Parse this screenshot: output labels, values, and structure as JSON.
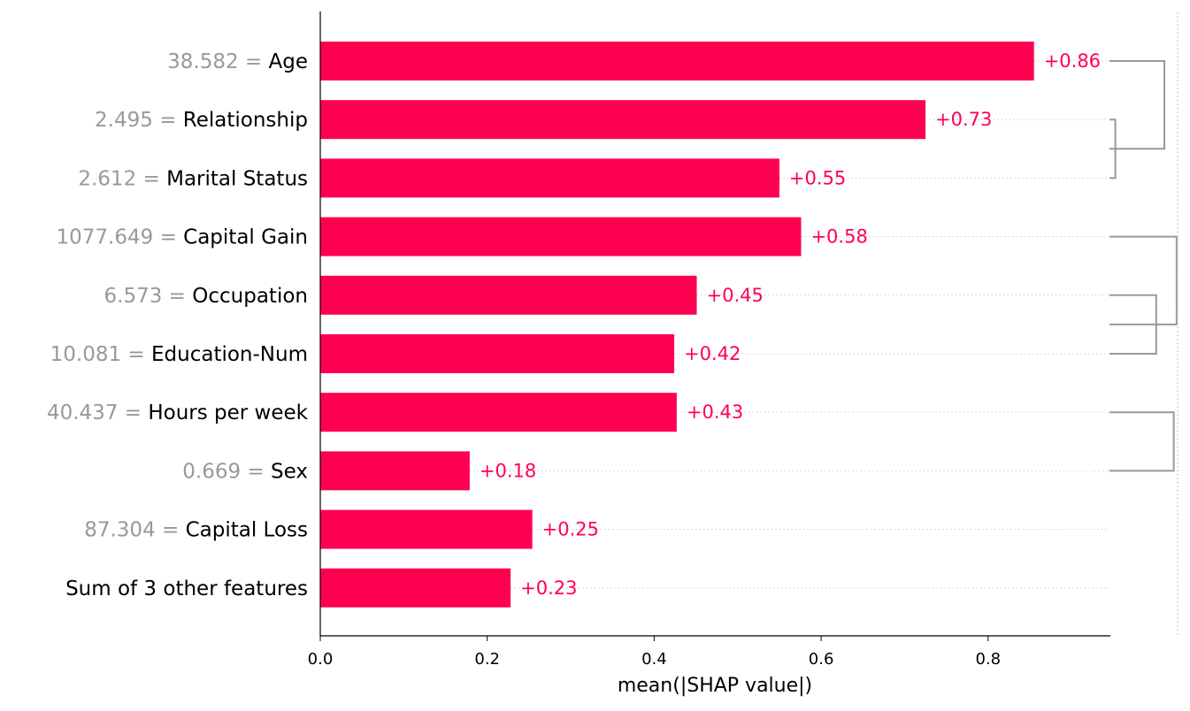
{
  "chart_data": {
    "type": "bar",
    "orientation": "horizontal",
    "xlabel": "mean(|SHAP value|)",
    "xlim": [
      0.0,
      0.94
    ],
    "x_ticks": [
      "0.0",
      "0.2",
      "0.4",
      "0.6",
      "0.8"
    ],
    "x_tick_values": [
      0.0,
      0.2,
      0.4,
      0.6,
      0.8
    ],
    "grid": "dotted row guides",
    "bar_color": "#ff0051",
    "label_color": "#ff0051",
    "feature_value_color": "#999999",
    "features": [
      {
        "value": "38.582 =",
        "name": "Age",
        "shap": 0.855,
        "label": "+0.86"
      },
      {
        "value": "2.495 =",
        "name": "Relationship",
        "shap": 0.725,
        "label": "+0.73"
      },
      {
        "value": "2.612 =",
        "name": "Marital Status",
        "shap": 0.55,
        "label": "+0.55"
      },
      {
        "value": "1077.649 =",
        "name": "Capital Gain",
        "shap": 0.576,
        "label": "+0.58"
      },
      {
        "value": "6.573 =",
        "name": "Occupation",
        "shap": 0.451,
        "label": "+0.45"
      },
      {
        "value": "10.081 =",
        "name": "Education-Num",
        "shap": 0.424,
        "label": "+0.42"
      },
      {
        "value": "40.437 =",
        "name": "Hours per week",
        "shap": 0.427,
        "label": "+0.43"
      },
      {
        "value": "0.669 =",
        "name": "Sex",
        "shap": 0.179,
        "label": "+0.18"
      },
      {
        "value": "87.304 =",
        "name": "Capital Loss",
        "shap": 0.254,
        "label": "+0.25"
      },
      {
        "value": "",
        "name": "Sum of 3 other features",
        "shap": 0.228,
        "label": "+0.23"
      }
    ],
    "clustering": [
      {
        "rows": [
          1,
          2
        ],
        "height": 0.1
      },
      {
        "rows": [
          0,
          1.5
        ],
        "height": 0.94
      },
      {
        "rows": [
          4,
          5
        ],
        "height": 0.8
      },
      {
        "rows": [
          3,
          4.5
        ],
        "height": 1.15
      },
      {
        "rows": [
          6,
          7
        ],
        "height": 1.1
      }
    ]
  }
}
